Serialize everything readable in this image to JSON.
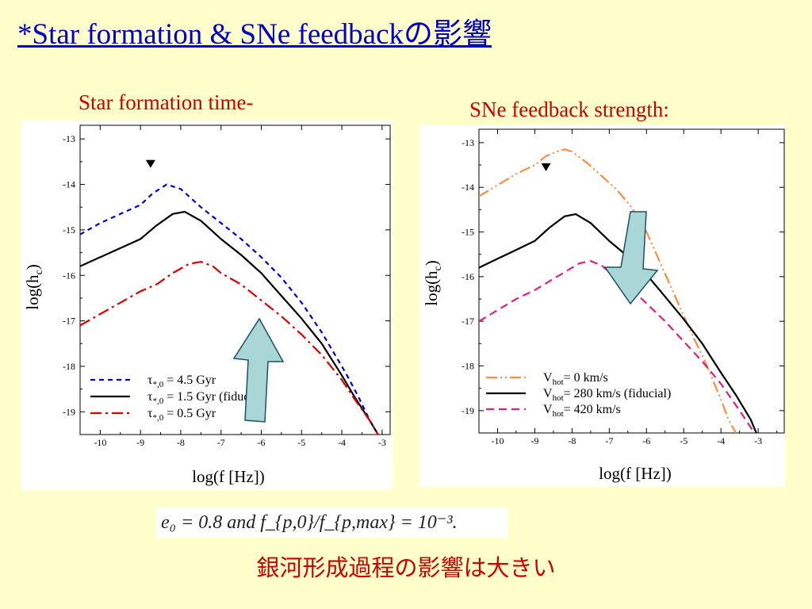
{
  "slide": {
    "title": "*Star formation & SNe feedbackの影響",
    "left_caption": "Star formation time-",
    "right_caption": "SNe feedback strength:",
    "equation": "e₀ = 0.8 and f_{p,0}/f_{p,max} = 10⁻³.",
    "conclusion": "銀河形成過程の影響は大きい"
  },
  "colors": {
    "background": "#ffffcc",
    "title": "#0000cc",
    "caption": "#cc0000",
    "arrow_fill": "#a9d7d8",
    "arrow_stroke": "#1f4f63"
  },
  "chart_data": [
    {
      "type": "line",
      "xlabel": "log(f [Hz])",
      "ylabel": "log(h",
      "ylabel_sub": "c",
      "ylabel_close": ")",
      "xlim": [
        -10.5,
        -2.8
      ],
      "ylim": [
        -19.5,
        -12.7
      ],
      "x_ticks": [
        -10,
        -9,
        -8,
        -7,
        -6,
        -5,
        -4,
        -3
      ],
      "y_ticks": [
        -13,
        -14,
        -15,
        -16,
        -17,
        -18,
        -19
      ],
      "marker": {
        "shape": "down-triangle",
        "x": -8.75,
        "y": -13.55
      },
      "arrow": {
        "direction": "up"
      },
      "legend_position": "bottom-left",
      "series": [
        {
          "label_main": "τ",
          "label_sub": "*,0",
          "label_rest": " = 4.5 Gyr",
          "color": "#0000dd",
          "dash": "6,5",
          "x": [
            -10.5,
            -10,
            -9.5,
            -9,
            -8.7,
            -8.35,
            -8,
            -7.5,
            -7,
            -6.5,
            -6,
            -5.5,
            -5,
            -4.5,
            -4.2,
            -3.9,
            -3.6,
            -3.3,
            -3.1
          ],
          "y": [
            -15.1,
            -14.85,
            -14.65,
            -14.45,
            -14.2,
            -14.0,
            -14.1,
            -14.5,
            -14.85,
            -15.2,
            -15.6,
            -16.05,
            -16.6,
            -17.25,
            -17.7,
            -18.15,
            -18.65,
            -19.2,
            -19.5
          ]
        },
        {
          "label_main": "τ",
          "label_sub": "*,0",
          "label_rest": " = 1.5 Gyr (fiducial)",
          "color": "#000000",
          "dash": "",
          "x": [
            -10.5,
            -10,
            -9.5,
            -9,
            -8.6,
            -8.2,
            -7.9,
            -7.5,
            -7,
            -6.5,
            -6,
            -5.5,
            -5,
            -4.5,
            -4,
            -3.7,
            -3.3,
            -3.1
          ],
          "y": [
            -15.8,
            -15.6,
            -15.4,
            -15.2,
            -14.9,
            -14.65,
            -14.6,
            -14.8,
            -15.2,
            -15.55,
            -15.95,
            -16.45,
            -16.95,
            -17.5,
            -18.2,
            -18.65,
            -19.2,
            -19.5
          ]
        },
        {
          "label_main": "τ",
          "label_sub": "*,0",
          "label_rest": " = 0.5 Gyr",
          "color": "#dd0000",
          "dash": "14,5,3,5",
          "x": [
            -10.5,
            -10,
            -9.5,
            -9,
            -8.6,
            -8.2,
            -7.8,
            -7.5,
            -7.2,
            -7,
            -6.5,
            -6,
            -5.5,
            -5,
            -4.5,
            -4,
            -3.7,
            -3.3,
            -3.1
          ],
          "y": [
            -17.1,
            -16.85,
            -16.6,
            -16.35,
            -16.2,
            -15.95,
            -15.75,
            -15.7,
            -15.8,
            -15.95,
            -16.2,
            -16.55,
            -16.9,
            -17.3,
            -17.75,
            -18.3,
            -18.7,
            -19.2,
            -19.5
          ]
        }
      ]
    },
    {
      "type": "line",
      "xlabel": "log(f [Hz])",
      "ylabel": "log(h",
      "ylabel_sub": "c",
      "ylabel_close": ")",
      "xlim": [
        -10.5,
        -2.3
      ],
      "ylim": [
        -19.5,
        -12.7
      ],
      "x_ticks": [
        -10,
        -9,
        -8,
        -7,
        -6,
        -5,
        -4,
        -3
      ],
      "y_ticks": [
        -13,
        -14,
        -15,
        -16,
        -17,
        -18,
        -19
      ],
      "marker": {
        "shape": "down-triangle",
        "x": -8.7,
        "y": -13.55
      },
      "arrow": {
        "direction": "down"
      },
      "legend_position": "bottom-left",
      "series": [
        {
          "label_main": "V",
          "label_sub": "hot",
          "label_rest": "= 0 km/s",
          "color": "#ff8c42",
          "dash": "14,4,2,4,2,4",
          "x": [
            -10.5,
            -10,
            -9.5,
            -9,
            -8.7,
            -8.4,
            -8.2,
            -8,
            -7.6,
            -7.2,
            -6.8,
            -6.4,
            -6,
            -5.6,
            -5.2,
            -4.8,
            -4.4,
            -4,
            -3.8,
            -3.6
          ],
          "y": [
            -14.2,
            -13.95,
            -13.7,
            -13.5,
            -13.3,
            -13.2,
            -13.15,
            -13.2,
            -13.45,
            -13.75,
            -14.05,
            -14.45,
            -15.0,
            -15.75,
            -16.5,
            -17.25,
            -17.95,
            -18.75,
            -19.2,
            -19.5
          ]
        },
        {
          "label_main": "V",
          "label_sub": "hot",
          "label_rest": "= 280 km/s (fiducial)",
          "color": "#000000",
          "dash": "",
          "x": [
            -10.5,
            -10,
            -9.5,
            -9,
            -8.6,
            -8.2,
            -7.9,
            -7.5,
            -7,
            -6.5,
            -6,
            -5.5,
            -5,
            -4.5,
            -4,
            -3.6,
            -3.2,
            -3.05
          ],
          "y": [
            -15.8,
            -15.6,
            -15.4,
            -15.2,
            -14.9,
            -14.65,
            -14.6,
            -14.8,
            -15.2,
            -15.55,
            -15.95,
            -16.45,
            -16.95,
            -17.5,
            -18.15,
            -18.65,
            -19.2,
            -19.5
          ]
        },
        {
          "label_main": "V",
          "label_sub": "hot",
          "label_rest": "= 420 km/s",
          "color": "#e0207a",
          "dash": "10,6",
          "x": [
            -10.5,
            -10,
            -9.5,
            -9,
            -8.6,
            -8.2,
            -7.8,
            -7.5,
            -7.2,
            -7,
            -6.5,
            -6,
            -5.5,
            -5,
            -4.5,
            -4,
            -3.5,
            -3.1
          ],
          "y": [
            -17.0,
            -16.75,
            -16.5,
            -16.3,
            -16.1,
            -15.9,
            -15.7,
            -15.65,
            -15.75,
            -15.9,
            -16.2,
            -16.6,
            -17.0,
            -17.45,
            -17.9,
            -18.4,
            -19.0,
            -19.5
          ]
        }
      ]
    }
  ]
}
